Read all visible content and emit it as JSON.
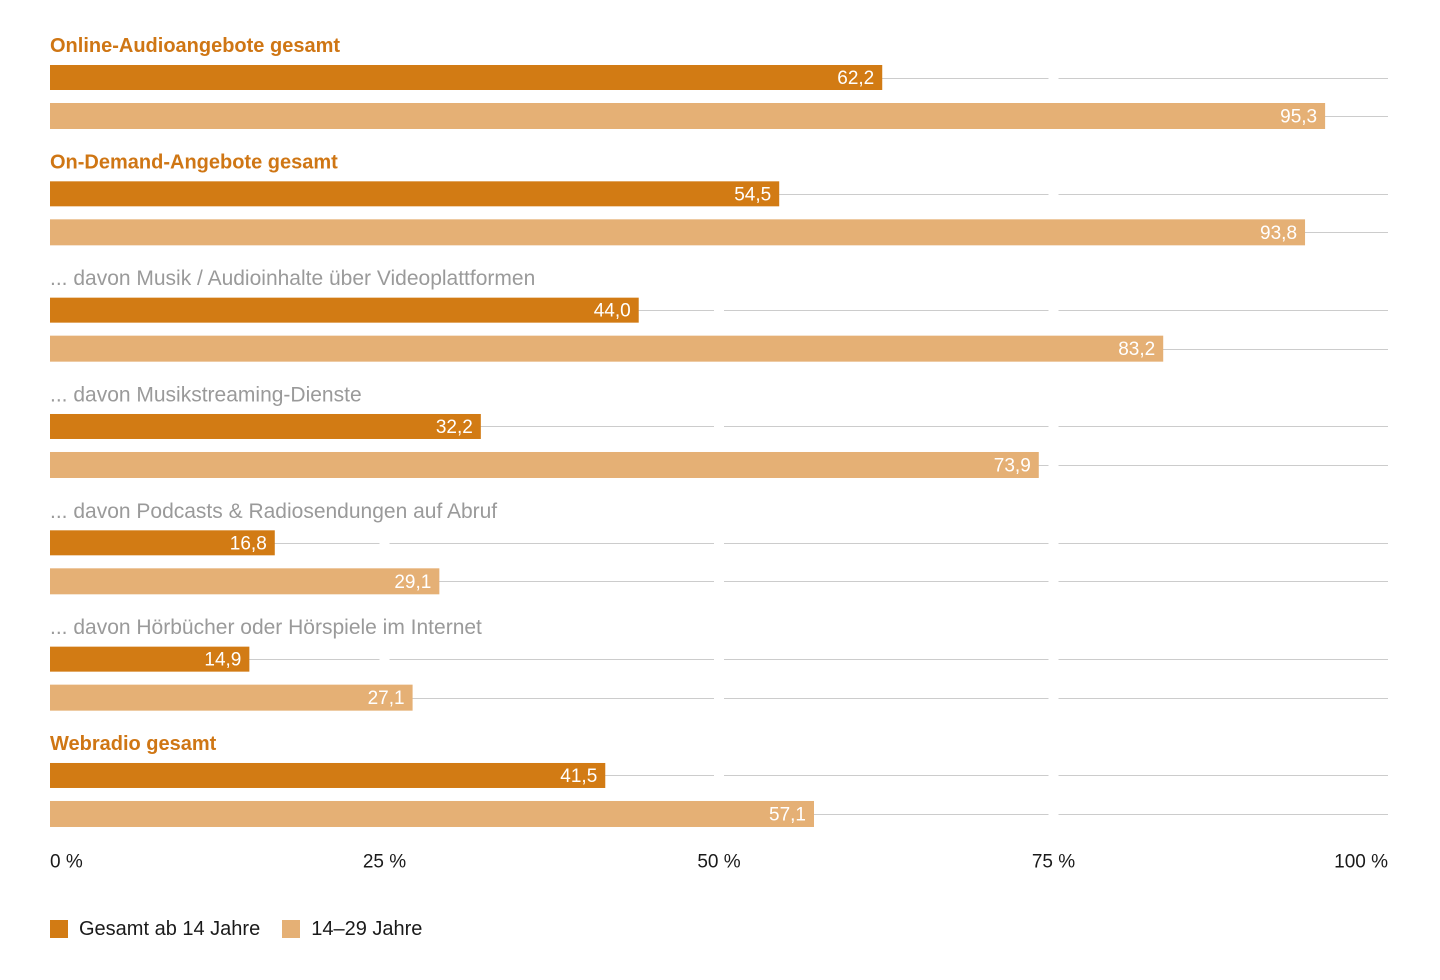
{
  "chart_data": {
    "type": "bar",
    "orientation": "horizontal",
    "categories": [
      "Online-Audioangebote gesamt",
      "On-Demand-Angebote gesamt",
      "... davon Musik / Audioinhalte über Videoplattformen",
      "... davon Musikstreaming-Dienste",
      "... davon Podcasts & Radiosendungen auf Abruf",
      "... davon Hörbücher oder Hörspiele im Internet",
      "Webradio gesamt"
    ],
    "category_levels": [
      1,
      1,
      2,
      2,
      2,
      2,
      1
    ],
    "series": [
      {
        "name": "Gesamt ab 14 Jahre",
        "values": [
          62.2,
          54.5,
          44.0,
          32.2,
          16.8,
          14.9,
          41.5
        ],
        "color": "#d27b14"
      },
      {
        "name": "14–29 Jahre",
        "values": [
          95.3,
          93.8,
          83.2,
          73.9,
          29.1,
          27.1,
          57.1
        ],
        "color": "#e5b075"
      }
    ],
    "xlim": [
      0,
      100
    ],
    "x_ticks": [
      0,
      25,
      50,
      75,
      100
    ],
    "x_tick_labels": [
      "0 %",
      "25 %",
      "50 %",
      "75 %",
      "100 %"
    ],
    "grid": true,
    "data_labels": true,
    "legend_position": "bottom-left"
  },
  "colors": {
    "category_main": "#cf7614",
    "category_sub": "#9a9a9a",
    "gridline": "#cccccc",
    "axis_text": "#1a1a1a",
    "data_label": "#ffffff"
  }
}
